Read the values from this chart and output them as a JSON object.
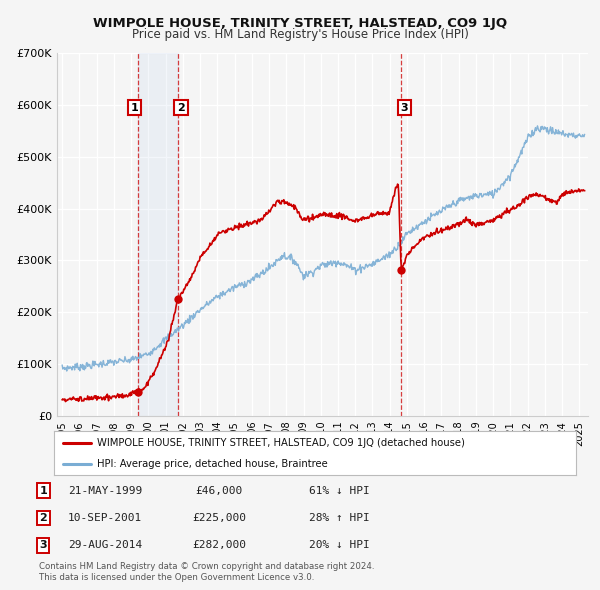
{
  "title": "WIMPOLE HOUSE, TRINITY STREET, HALSTEAD, CO9 1JQ",
  "subtitle": "Price paid vs. HM Land Registry's House Price Index (HPI)",
  "legend_label_red": "WIMPOLE HOUSE, TRINITY STREET, HALSTEAD, CO9 1JQ (detached house)",
  "legend_label_blue": "HPI: Average price, detached house, Braintree",
  "footer_line1": "Contains HM Land Registry data © Crown copyright and database right 2024.",
  "footer_line2": "This data is licensed under the Open Government Licence v3.0.",
  "transactions": [
    {
      "num": "1",
      "date": "21-MAY-1999",
      "price": "£46,000",
      "hpi": "61% ↓ HPI",
      "year": 1999.38
    },
    {
      "num": "2",
      "date": "10-SEP-2001",
      "price": "£225,000",
      "hpi": "28% ↑ HPI",
      "year": 2001.69
    },
    {
      "num": "3",
      "date": "29-AUG-2014",
      "price": "£282,000",
      "hpi": "20% ↓ HPI",
      "year": 2014.66
    }
  ],
  "transaction_prices": [
    46000,
    225000,
    282000
  ],
  "background_color": "#f5f5f5",
  "plot_background": "#f5f5f5",
  "red_color": "#cc0000",
  "blue_color": "#7aadd4",
  "ylim": [
    0,
    700000
  ],
  "yticks": [
    0,
    100000,
    200000,
    300000,
    400000,
    500000,
    600000,
    700000
  ],
  "ytick_labels": [
    "£0",
    "£100K",
    "£200K",
    "£300K",
    "£400K",
    "£500K",
    "£600K",
    "£700K"
  ],
  "xlim_start": 1994.7,
  "xlim_end": 2025.5,
  "xtick_years": [
    1995,
    1996,
    1997,
    1998,
    1999,
    2000,
    2001,
    2002,
    2003,
    2004,
    2005,
    2006,
    2007,
    2008,
    2009,
    2010,
    2011,
    2012,
    2013,
    2014,
    2015,
    2016,
    2017,
    2018,
    2019,
    2020,
    2021,
    2022,
    2023,
    2024,
    2025
  ]
}
